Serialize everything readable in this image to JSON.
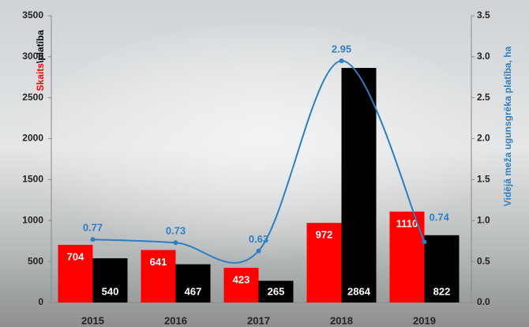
{
  "chart_data": {
    "type": "bar",
    "y_label": [
      "Skaits",
      "\\platība"
    ],
    "y2_label": "Vidējā meža ugunsgrēka platība, ha",
    "categories": [
      "2015",
      "2016",
      "2017",
      "2018",
      "2019"
    ],
    "series": [
      {
        "type": "bar",
        "color": "#ff0000",
        "label_position": "top",
        "values": [
          704,
          641,
          423,
          972,
          1110
        ]
      },
      {
        "type": "bar",
        "color": "#000000",
        "label_position": "bottom",
        "values": [
          540,
          467,
          265,
          2864,
          822
        ]
      },
      {
        "type": "line",
        "axis": "y2",
        "color": "#2e7fc1",
        "values": [
          0.77,
          0.73,
          0.63,
          2.95,
          0.74
        ]
      }
    ],
    "ylim": [
      0,
      3500
    ],
    "yticks": [
      0,
      500,
      1000,
      1500,
      2000,
      2500,
      3000,
      3500
    ],
    "y2lim": [
      0,
      3.5
    ],
    "y2ticks": [
      {
        "value": 0,
        "label": "0.0"
      },
      0.5,
      {
        "value": 1,
        "label": "1.0"
      },
      1.5,
      {
        "value": 2,
        "label": "2.0"
      },
      2.5,
      {
        "value": 3,
        "label": "3.0"
      },
      3.5
    ]
  }
}
